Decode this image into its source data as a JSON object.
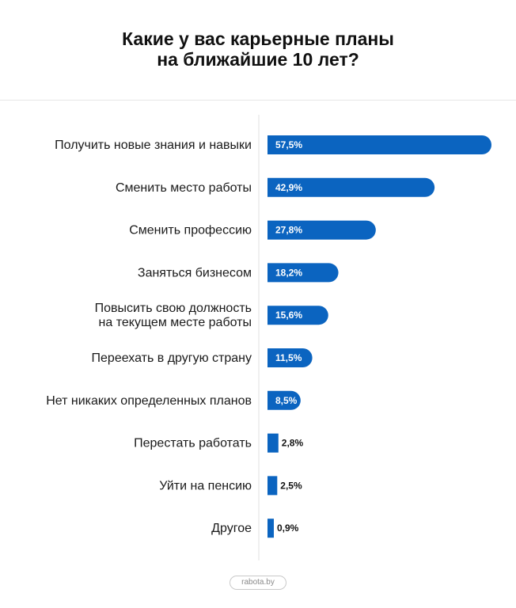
{
  "header": {
    "title_lines": [
      "Какие у вас карьерные планы",
      "на ближайшие 10 лет?"
    ]
  },
  "footer": {
    "source": "rabota.by"
  },
  "colors": {
    "bar": "#0B64C0",
    "label_inside": "#ffffff",
    "label_outside": "#111111",
    "axis": "#e2e2e2"
  },
  "chart_data": {
    "type": "bar",
    "orientation": "horizontal",
    "title": "Какие у вас карьерные планы на ближайшие 10 лет?",
    "categories": [
      [
        "Получить новые знания и навыки"
      ],
      [
        "Сменить место работы"
      ],
      [
        "Сменить профессию"
      ],
      [
        "Заняться бизнесом"
      ],
      [
        "Повысить свою должность",
        "на текущем месте работы"
      ],
      [
        "Переехать в другую страну"
      ],
      [
        "Нет никаких определенных планов"
      ],
      [
        "Перестать работать"
      ],
      [
        "Уйти на пенсию"
      ],
      [
        "Другое"
      ]
    ],
    "values": [
      57.5,
      42.9,
      27.8,
      18.2,
      15.6,
      11.5,
      8.5,
      2.8,
      2.5,
      0.9
    ],
    "value_labels": [
      "57,5%",
      "42,9%",
      "27,8%",
      "18,2%",
      "15,6%",
      "11,5%",
      "8,5%",
      "2,8%",
      "2,5%",
      "0,9%"
    ],
    "xlim": [
      0,
      57.5
    ],
    "grid": false,
    "legend": "none"
  }
}
